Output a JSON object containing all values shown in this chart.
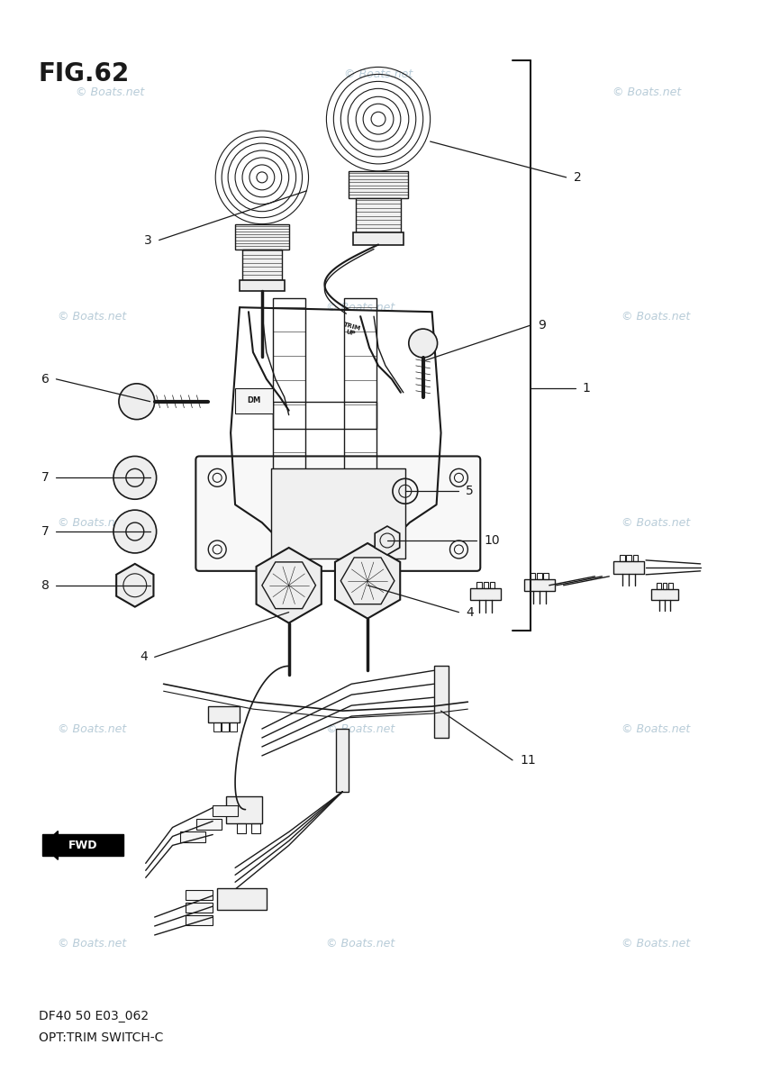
{
  "title": "FIG.62",
  "subtitle1": "DF40 50 E03_062",
  "subtitle2": "OPT:TRIM SWITCH-C",
  "watermark": "© Boats.net",
  "background_color": "#ffffff",
  "line_color": "#1a1a1a",
  "watermark_color": "#b8ccd8",
  "fig_title_fontsize": 20,
  "label_fontsize": 10,
  "subtitle_fontsize": 10
}
